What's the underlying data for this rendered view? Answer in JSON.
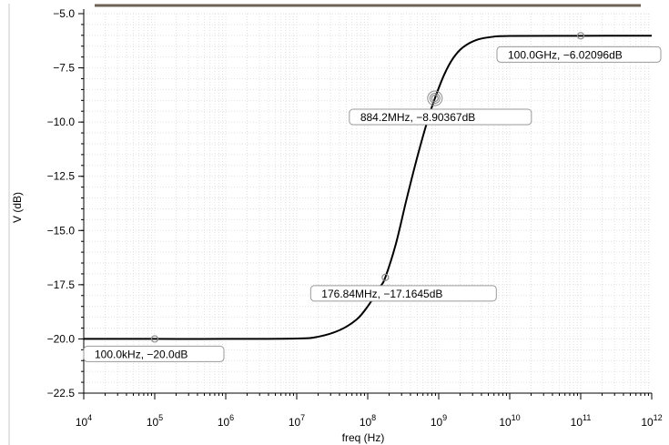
{
  "chart_data": {
    "type": "line",
    "title": "",
    "xlabel": "freq (Hz)",
    "ylabel": "V (dB)",
    "xscale": "log",
    "xlim": [
      10000,
      1000000000000
    ],
    "ylim": [
      -22.5,
      -5.0
    ],
    "grid": true,
    "x_ticks": [
      {
        "base": "10",
        "exp": "4"
      },
      {
        "base": "10",
        "exp": "5"
      },
      {
        "base": "10",
        "exp": "6"
      },
      {
        "base": "10",
        "exp": "7"
      },
      {
        "base": "10",
        "exp": "8"
      },
      {
        "base": "10",
        "exp": "9"
      },
      {
        "base": "10",
        "exp": "10"
      },
      {
        "base": "10",
        "exp": "11"
      },
      {
        "base": "10",
        "exp": "12"
      }
    ],
    "y_ticks": [
      "-5.0",
      "-7.5",
      "-10.0",
      "-12.5",
      "-15.0",
      "-17.5",
      "-20.0",
      "-22.5"
    ],
    "colors": {
      "curve": "#000000",
      "grid": "#e2e2e2",
      "marker": "#8c8c8c",
      "top_bar": "#6e6254"
    },
    "series": [
      {
        "x": [
          10000,
          100000,
          1000000,
          10000000,
          20000000,
          40000000,
          70000000,
          100000000,
          150000000,
          176840000,
          250000000,
          350000000,
          500000000,
          700000000,
          884200000,
          1200000000,
          1600000000,
          2200000000,
          3500000000,
          6000000000,
          10000000000,
          100000000000,
          1000000000000
        ],
        "y": [
          -20.0,
          -20.0,
          -20.0,
          -19.98,
          -19.9,
          -19.6,
          -19.1,
          -18.5,
          -17.6,
          -17.1645,
          -15.6,
          -13.6,
          -11.6,
          -9.9,
          -8.90367,
          -7.8,
          -7.05,
          -6.55,
          -6.2,
          -6.06,
          -6.03,
          -6.02096,
          -6.02
        ]
      }
    ],
    "markers": [
      {
        "x": 100000,
        "y": -20.0,
        "label": "100.0kHz, −20.0dB"
      },
      {
        "x": 176840000,
        "y": -17.1645,
        "label": "176.84MHz, −17.1645dB"
      },
      {
        "x": 884200000,
        "y": -8.90367,
        "label": "884.2MHz, −8.90367dB"
      },
      {
        "x": 100000000000,
        "y": -6.02096,
        "label": "100.0GHz, −6.02096dB"
      }
    ]
  }
}
